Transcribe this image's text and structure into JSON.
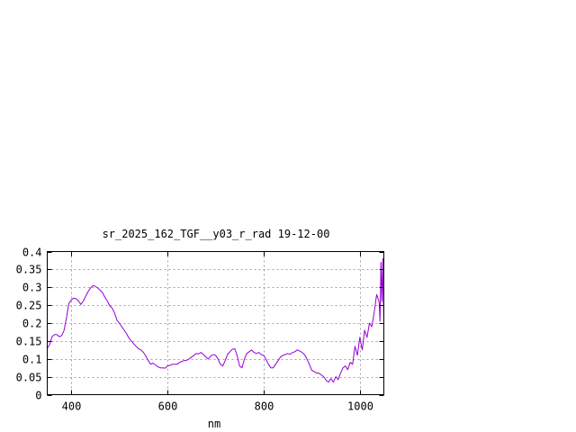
{
  "chart_data": {
    "type": "line",
    "title": "sr_2025_162_TGF__y03_r_rad 19-12-00",
    "xlabel": "nm",
    "ylabel": "",
    "xlim": [
      350,
      1050
    ],
    "ylim": [
      0,
      0.4
    ],
    "xticks": [
      400,
      600,
      800,
      1000
    ],
    "xtick_labels": [
      "400",
      "600",
      "800",
      "1000"
    ],
    "yticks": [
      0,
      0.05,
      0.1,
      0.15,
      0.2,
      0.25,
      0.3,
      0.35,
      0.4
    ],
    "ytick_labels": [
      "0",
      "0.05",
      "0.1",
      "0.15",
      "0.2",
      "0.25",
      "0.3",
      "0.35",
      "0.4"
    ],
    "grid": true,
    "legend": "none",
    "colors": {
      "series": "#9400d3",
      "grid": "#a0a0a0",
      "axis": "#000000"
    },
    "series": [
      {
        "x": [
          350,
          355,
          360,
          365,
          370,
          375,
          380,
          385,
          390,
          395,
          400,
          405,
          410,
          415,
          420,
          425,
          430,
          435,
          440,
          445,
          450,
          455,
          460,
          465,
          470,
          475,
          480,
          485,
          490,
          495,
          500,
          505,
          510,
          515,
          520,
          525,
          530,
          535,
          540,
          545,
          550,
          555,
          560,
          565,
          570,
          575,
          580,
          585,
          590,
          595,
          600,
          605,
          610,
          615,
          620,
          625,
          630,
          635,
          640,
          645,
          650,
          655,
          660,
          665,
          670,
          675,
          680,
          685,
          690,
          695,
          700,
          705,
          710,
          715,
          720,
          725,
          730,
          735,
          740,
          745,
          750,
          755,
          760,
          765,
          770,
          775,
          780,
          785,
          790,
          795,
          800,
          805,
          810,
          815,
          820,
          825,
          830,
          835,
          840,
          845,
          850,
          855,
          860,
          865,
          870,
          875,
          880,
          885,
          890,
          895,
          900,
          905,
          910,
          915,
          920,
          925,
          930,
          935,
          940,
          945,
          950,
          955,
          960,
          965,
          970,
          975,
          980,
          985,
          990,
          995,
          1000,
          1005,
          1010,
          1015,
          1020,
          1025,
          1030,
          1035,
          1040,
          1042,
          1044,
          1046,
          1048,
          1050
        ],
        "y": [
          0.13,
          0.14,
          0.162,
          0.168,
          0.168,
          0.162,
          0.165,
          0.18,
          0.215,
          0.255,
          0.265,
          0.27,
          0.268,
          0.262,
          0.252,
          0.262,
          0.275,
          0.288,
          0.298,
          0.305,
          0.303,
          0.298,
          0.292,
          0.285,
          0.272,
          0.262,
          0.248,
          0.242,
          0.228,
          0.208,
          0.2,
          0.19,
          0.18,
          0.17,
          0.158,
          0.15,
          0.142,
          0.135,
          0.128,
          0.125,
          0.118,
          0.108,
          0.095,
          0.085,
          0.088,
          0.083,
          0.078,
          0.075,
          0.075,
          0.074,
          0.08,
          0.082,
          0.085,
          0.085,
          0.085,
          0.09,
          0.093,
          0.095,
          0.096,
          0.1,
          0.105,
          0.11,
          0.115,
          0.114,
          0.118,
          0.112,
          0.105,
          0.1,
          0.108,
          0.112,
          0.11,
          0.1,
          0.085,
          0.08,
          0.095,
          0.113,
          0.12,
          0.127,
          0.128,
          0.11,
          0.08,
          0.075,
          0.1,
          0.115,
          0.12,
          0.125,
          0.118,
          0.115,
          0.118,
          0.112,
          0.11,
          0.098,
          0.085,
          0.075,
          0.075,
          0.085,
          0.095,
          0.105,
          0.11,
          0.112,
          0.115,
          0.113,
          0.118,
          0.12,
          0.125,
          0.122,
          0.118,
          0.112,
          0.1,
          0.085,
          0.068,
          0.065,
          0.06,
          0.06,
          0.055,
          0.05,
          0.04,
          0.035,
          0.045,
          0.035,
          0.05,
          0.042,
          0.06,
          0.075,
          0.08,
          0.07,
          0.09,
          0.085,
          0.135,
          0.11,
          0.16,
          0.125,
          0.18,
          0.16,
          0.2,
          0.19,
          0.23,
          0.28,
          0.26,
          0.205,
          0.37,
          0.26,
          0.38,
          0.2
        ]
      }
    ]
  }
}
